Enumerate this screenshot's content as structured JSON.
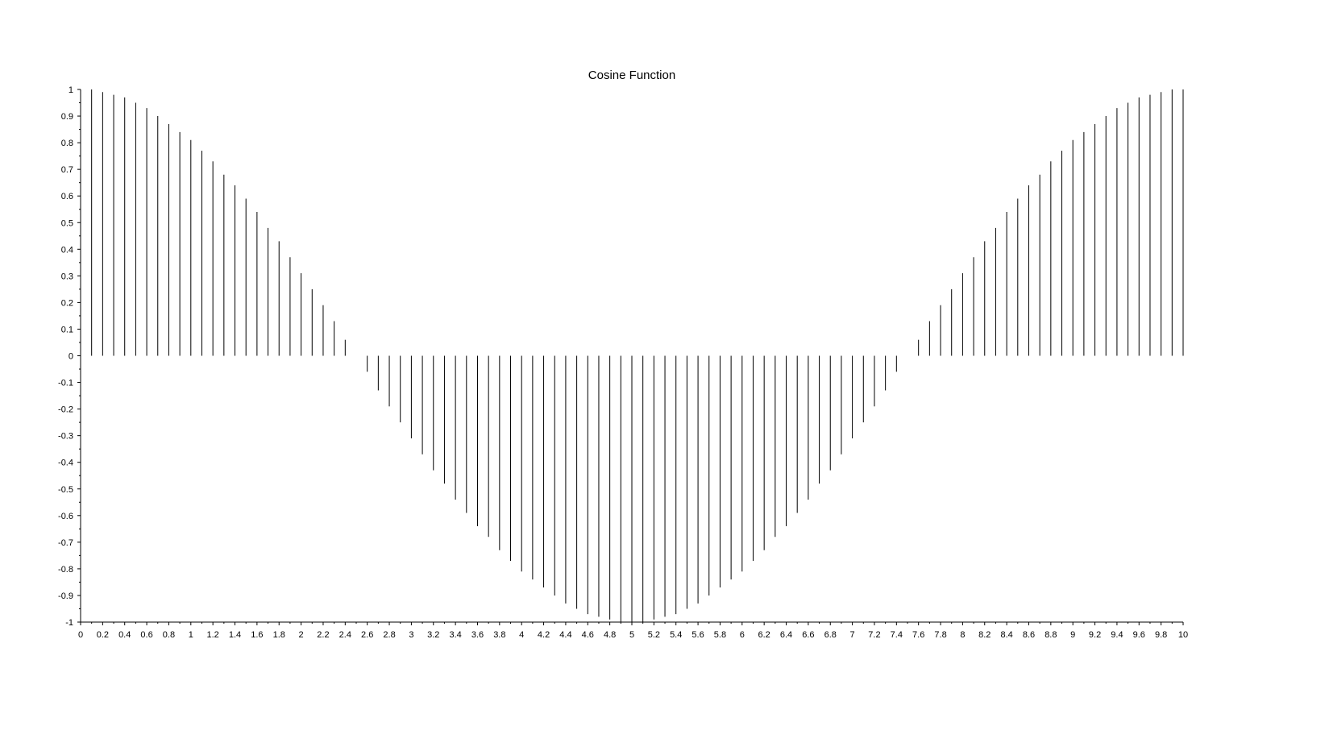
{
  "chart_data": {
    "type": "stem",
    "title": "Cosine Function",
    "xlabel": "",
    "ylabel": "",
    "xlim": [
      0,
      10
    ],
    "ylim": [
      -1,
      1
    ],
    "grid": false,
    "x_ticks": [
      "0",
      "0.2",
      "0.4",
      "0.6",
      "0.8",
      "1",
      "1.2",
      "1.4",
      "1.6",
      "1.8",
      "2",
      "2.2",
      "2.4",
      "2.6",
      "2.8",
      "3",
      "3.2",
      "3.4",
      "3.6",
      "3.8",
      "4",
      "4.2",
      "4.4",
      "4.6",
      "4.8",
      "5",
      "5.2",
      "5.4",
      "5.6",
      "5.8",
      "6",
      "6.2",
      "6.4",
      "6.6",
      "6.8",
      "7",
      "7.2",
      "7.4",
      "7.6",
      "7.8",
      "8",
      "8.2",
      "8.4",
      "8.6",
      "8.8",
      "9",
      "9.2",
      "9.4",
      "9.6",
      "9.8",
      "10"
    ],
    "y_ticks": [
      "1",
      "0.9",
      "0.8",
      "0.7",
      "0.6",
      "0.5",
      "0.4",
      "0.3",
      "0.2",
      "0.1",
      "0",
      "-0.1",
      "-0.2",
      "-0.3",
      "-0.4",
      "-0.5",
      "-0.6",
      "-0.7",
      "-0.8",
      "-0.9",
      "-1"
    ],
    "series": [
      {
        "color": "#000000",
        "x": [
          0.1,
          0.2,
          0.3,
          0.4,
          0.5,
          0.6,
          0.7,
          0.8,
          0.9,
          1,
          1.1,
          1.2,
          1.3,
          1.4,
          1.5,
          1.6,
          1.7,
          1.8,
          1.9,
          2,
          2.1,
          2.2,
          2.3,
          2.4,
          2.5,
          2.6,
          2.7,
          2.8,
          2.9,
          3,
          3.1,
          3.2,
          3.3,
          3.4,
          3.5,
          3.6,
          3.7,
          3.8,
          3.9,
          4,
          4.1,
          4.2,
          4.3,
          4.4,
          4.5,
          4.6,
          4.7,
          4.8,
          4.9,
          5,
          5.1,
          5.2,
          5.3,
          5.4,
          5.5,
          5.6,
          5.7,
          5.8,
          5.9,
          6,
          6.1,
          6.2,
          6.3,
          6.4,
          6.5,
          6.6,
          6.7,
          6.8,
          6.9,
          7,
          7.1,
          7.2,
          7.3,
          7.4,
          7.5,
          7.6,
          7.7,
          7.8,
          7.9,
          8,
          8.1,
          8.2,
          8.3,
          8.4,
          8.5,
          8.6,
          8.7,
          8.8,
          8.9,
          9,
          9.1,
          9.2,
          9.3,
          9.4,
          9.5,
          9.6,
          9.7,
          9.8,
          9.9,
          10
        ],
        "values": [
          1,
          0.99,
          0.98,
          0.97,
          0.95,
          0.93,
          0.9,
          0.87,
          0.84,
          0.81,
          0.77,
          0.73,
          0.68,
          0.64,
          0.59,
          0.54,
          0.48,
          0.43,
          0.37,
          0.31,
          0.25,
          0.19,
          0.13,
          0.06,
          0,
          -0.06,
          -0.13,
          -0.19,
          -0.25,
          -0.31,
          -0.37,
          -0.43,
          -0.48,
          -0.54,
          -0.59,
          -0.64,
          -0.68,
          -0.73,
          -0.77,
          -0.81,
          -0.84,
          -0.87,
          -0.9,
          -0.93,
          -0.95,
          -0.97,
          -0.98,
          -0.99,
          -1,
          -1,
          -1,
          -0.99,
          -0.98,
          -0.97,
          -0.95,
          -0.93,
          -0.9,
          -0.87,
          -0.84,
          -0.81,
          -0.77,
          -0.73,
          -0.68,
          -0.64,
          -0.59,
          -0.54,
          -0.48,
          -0.43,
          -0.37,
          -0.31,
          -0.25,
          -0.19,
          -0.13,
          -0.06,
          0,
          0.06,
          0.13,
          0.19,
          0.25,
          0.31,
          0.37,
          0.43,
          0.48,
          0.54,
          0.59,
          0.64,
          0.68,
          0.73,
          0.77,
          0.81,
          0.84,
          0.87,
          0.9,
          0.93,
          0.95,
          0.97,
          0.98,
          0.99,
          1,
          1
        ]
      }
    ]
  }
}
